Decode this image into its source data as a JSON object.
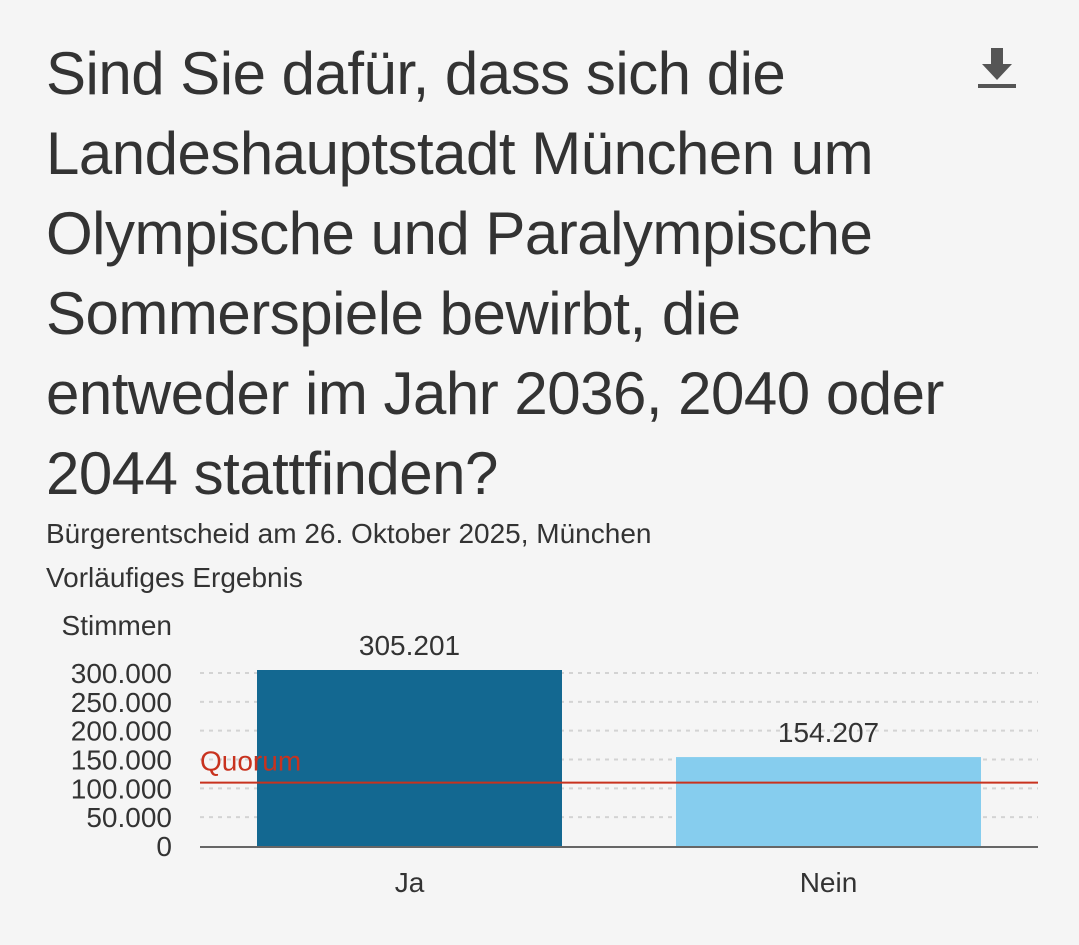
{
  "header": {
    "title": "Sind Sie dafür, dass sich die Landeshauptstadt München um Olympische und Paralympische Sommerspiele bewirbt, die entweder im Jahr 2036, 2040 oder 2044 stattfinden?",
    "subtitle_line1": "Bürgerentscheid am 26. Oktober 2025, München",
    "subtitle_line2": "Vorläufiges Ergebnis",
    "download_icon": "download-icon"
  },
  "chart_data": {
    "type": "bar",
    "ylabel": "Stimmen",
    "categories": [
      "Ja",
      "Nein"
    ],
    "values": [
      305201,
      154207
    ],
    "value_labels": [
      "305.201",
      "154.207"
    ],
    "ylim": [
      0,
      300000
    ],
    "yticks": [
      {
        "value": 0,
        "label": "0"
      },
      {
        "value": 50000,
        "label": "50.000"
      },
      {
        "value": 100000,
        "label": "100.000"
      },
      {
        "value": 150000,
        "label": "150.000"
      },
      {
        "value": 200000,
        "label": "200.000"
      },
      {
        "value": 250000,
        "label": "250.000"
      },
      {
        "value": 300000,
        "label": "300.000"
      }
    ],
    "reference_line": {
      "label": "Quorum",
      "value": 110000,
      "color": "#c8321e"
    },
    "colors": [
      "#136891",
      "#86cdee"
    ],
    "grid": true
  }
}
